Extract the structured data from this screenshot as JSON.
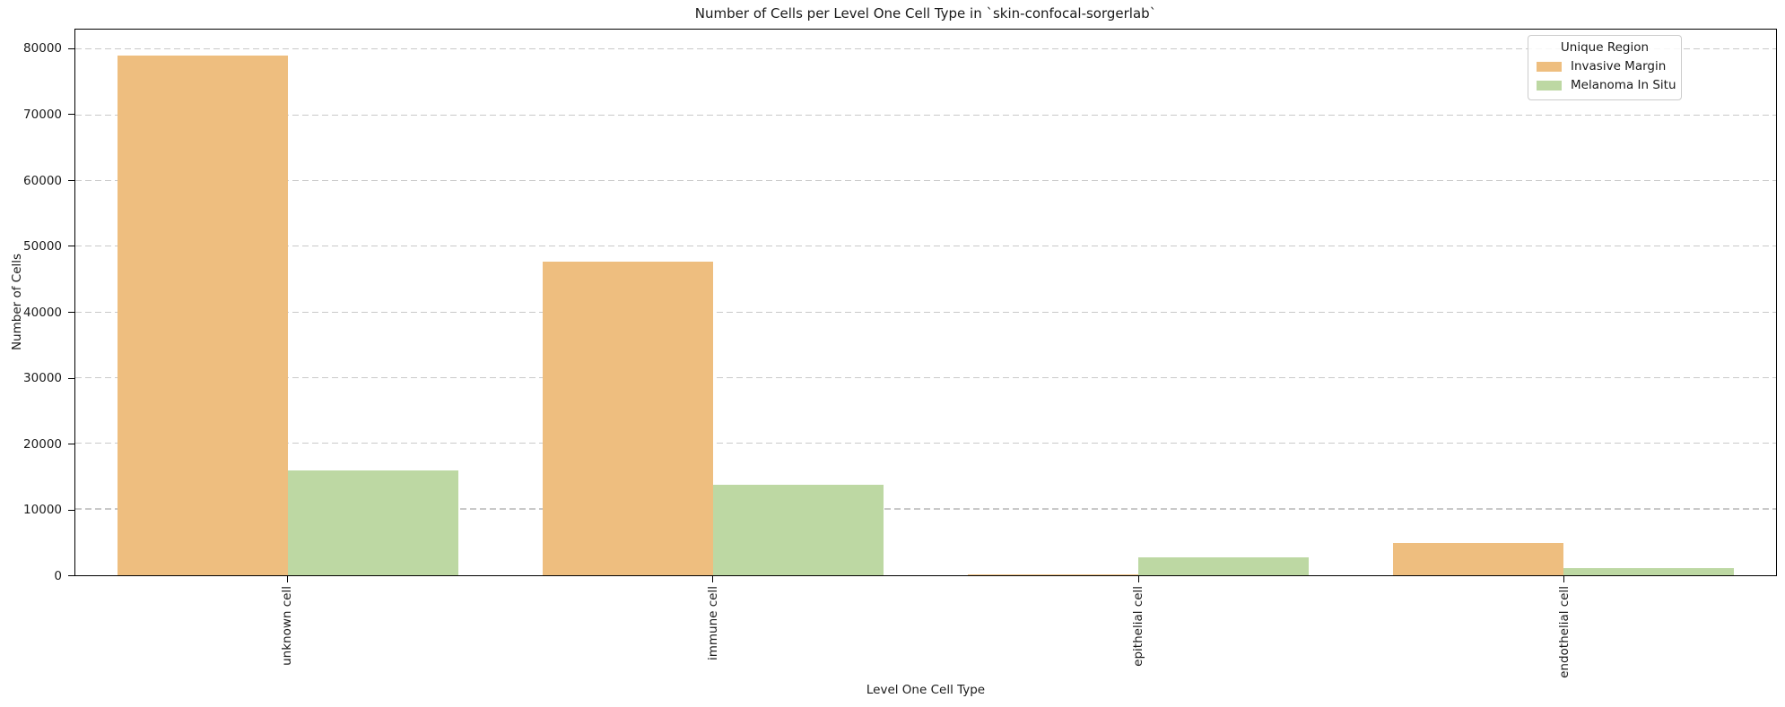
{
  "chart_data": {
    "type": "bar",
    "title": "Number of Cells per Level One Cell Type in `skin-confocal-sorgerlab`",
    "xlabel": "Level One Cell Type",
    "ylabel": "Number of Cells",
    "categories": [
      "unknown cell",
      "immune cell",
      "epithelial cell",
      "endothelial cell"
    ],
    "series": [
      {
        "name": "Invasive Margin",
        "color": "#EEBE7F",
        "values": [
          79100,
          47700,
          180,
          4850
        ]
      },
      {
        "name": "Melanoma In Situ",
        "color": "#BDD8A3",
        "values": [
          15900,
          13800,
          2680,
          1090
        ]
      }
    ],
    "legend": {
      "title": "Unique Region",
      "position": "upper right"
    },
    "ylim": [
      0,
      83050
    ],
    "yticks": [
      0,
      10000,
      20000,
      30000,
      40000,
      50000,
      60000,
      70000,
      80000
    ],
    "grid": {
      "axis": "y",
      "style": "dashed",
      "color": "#C9C9C9"
    },
    "bar_layout": {
      "group_width": 0.8,
      "bars_per_group": 2
    },
    "colors": {
      "background": "#FFFFFF",
      "spine": "#000000",
      "text": "#1A1A1A"
    }
  }
}
